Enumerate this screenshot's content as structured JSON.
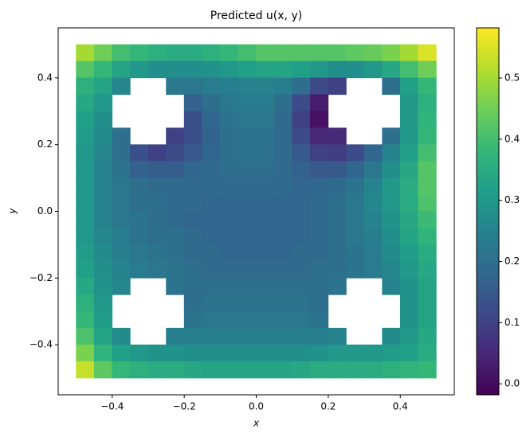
{
  "chart_data": {
    "type": "heatmap",
    "title": "Predicted u(x, y)",
    "xlabel": "x",
    "ylabel": "y",
    "colormap": "viridis",
    "xlim": [
      -0.55,
      0.55
    ],
    "ylim": [
      -0.55,
      0.55
    ],
    "xticks": [
      {
        "value": -0.4,
        "label": "−0.4"
      },
      {
        "value": -0.2,
        "label": "−0.2"
      },
      {
        "value": 0,
        "label": "0.0"
      },
      0.2,
      0.4
    ],
    "yticks": [
      {
        "value": -0.4,
        "label": "−0.4"
      },
      {
        "value": -0.2,
        "label": "−0.2"
      },
      {
        "value": 0,
        "label": "0.0"
      },
      0.2,
      0.4
    ],
    "clim": [
      -0.018,
      0.582
    ],
    "cticks": [
      {
        "value": 0,
        "label": "0.0"
      },
      0.1,
      0.2,
      0.3,
      0.4,
      0.5
    ],
    "x": [
      -0.475,
      -0.425,
      -0.375,
      -0.325,
      -0.275,
      -0.225,
      -0.175,
      -0.125,
      -0.075,
      -0.025,
      0.025,
      0.075,
      0.125,
      0.175,
      0.225,
      0.275,
      0.325,
      0.375,
      0.425,
      0.475
    ],
    "y": [
      0.475,
      0.425,
      0.375,
      0.325,
      0.275,
      0.225,
      0.175,
      0.125,
      0.075,
      0.025,
      -0.025,
      -0.075,
      -0.125,
      -0.175,
      -0.225,
      -0.275,
      -0.325,
      -0.375,
      -0.425,
      -0.475
    ],
    "z": [
      [
        0.5,
        0.45,
        0.4,
        0.38,
        0.36,
        0.35,
        0.35,
        0.36,
        0.38,
        0.4,
        0.42,
        0.42,
        0.42,
        0.42,
        0.42,
        0.43,
        0.44,
        0.46,
        0.5,
        0.55
      ],
      [
        0.42,
        0.38,
        0.33,
        0.3,
        0.28,
        0.28,
        0.28,
        0.29,
        0.3,
        0.32,
        0.33,
        0.33,
        0.32,
        0.3,
        0.28,
        0.28,
        0.3,
        0.34,
        0.4,
        0.45
      ],
      [
        0.36,
        0.33,
        0.26,
        null,
        null,
        0.22,
        0.22,
        0.23,
        0.24,
        0.25,
        0.25,
        0.24,
        0.2,
        0.12,
        0.1,
        null,
        null,
        0.2,
        0.32,
        0.38
      ],
      [
        0.34,
        0.3,
        null,
        null,
        null,
        null,
        0.17,
        0.2,
        0.22,
        0.23,
        0.23,
        0.2,
        0.12,
        0.03,
        null,
        null,
        null,
        null,
        0.3,
        0.36
      ],
      [
        0.32,
        0.28,
        null,
        null,
        null,
        null,
        0.13,
        0.18,
        0.21,
        0.22,
        0.22,
        0.19,
        0.1,
        0.01,
        null,
        null,
        null,
        null,
        0.3,
        0.37
      ],
      [
        0.31,
        0.27,
        0.2,
        null,
        null,
        0.1,
        0.13,
        0.17,
        0.2,
        0.21,
        0.21,
        0.19,
        0.12,
        0.05,
        0.05,
        null,
        null,
        0.2,
        0.3,
        0.38
      ],
      [
        0.3,
        0.26,
        0.2,
        0.13,
        0.1,
        0.12,
        0.15,
        0.18,
        0.2,
        0.21,
        0.21,
        0.19,
        0.15,
        0.1,
        0.09,
        0.12,
        0.18,
        0.25,
        0.32,
        0.4
      ],
      [
        0.3,
        0.25,
        0.21,
        0.17,
        0.16,
        0.16,
        0.18,
        0.19,
        0.2,
        0.2,
        0.2,
        0.19,
        0.17,
        0.15,
        0.15,
        0.18,
        0.22,
        0.28,
        0.34,
        0.42
      ],
      [
        0.3,
        0.25,
        0.22,
        0.2,
        0.19,
        0.19,
        0.19,
        0.19,
        0.19,
        0.19,
        0.19,
        0.19,
        0.18,
        0.18,
        0.19,
        0.21,
        0.25,
        0.3,
        0.35,
        0.42
      ],
      [
        0.3,
        0.25,
        0.22,
        0.2,
        0.2,
        0.19,
        0.19,
        0.18,
        0.18,
        0.18,
        0.18,
        0.18,
        0.18,
        0.19,
        0.2,
        0.22,
        0.26,
        0.3,
        0.35,
        0.41
      ],
      [
        0.3,
        0.25,
        0.22,
        0.21,
        0.2,
        0.19,
        0.18,
        0.18,
        0.18,
        0.18,
        0.18,
        0.18,
        0.18,
        0.19,
        0.2,
        0.22,
        0.25,
        0.29,
        0.34,
        0.39
      ],
      [
        0.3,
        0.26,
        0.23,
        0.21,
        0.2,
        0.2,
        0.19,
        0.18,
        0.18,
        0.18,
        0.18,
        0.18,
        0.18,
        0.19,
        0.2,
        0.22,
        0.24,
        0.28,
        0.33,
        0.37
      ],
      [
        0.31,
        0.27,
        0.24,
        0.22,
        0.21,
        0.2,
        0.19,
        0.19,
        0.18,
        0.18,
        0.18,
        0.18,
        0.19,
        0.19,
        0.2,
        0.21,
        0.23,
        0.27,
        0.31,
        0.35
      ],
      [
        0.32,
        0.28,
        0.25,
        0.23,
        0.22,
        0.21,
        0.2,
        0.19,
        0.19,
        0.19,
        0.19,
        0.19,
        0.19,
        0.2,
        0.2,
        0.21,
        0.23,
        0.26,
        0.3,
        0.34
      ],
      [
        0.34,
        0.29,
        0.26,
        null,
        null,
        0.21,
        0.2,
        0.2,
        0.2,
        0.2,
        0.2,
        0.2,
        0.2,
        0.2,
        0.21,
        null,
        null,
        0.25,
        0.29,
        0.33
      ],
      [
        0.36,
        0.3,
        null,
        null,
        null,
        null,
        0.2,
        0.21,
        0.21,
        0.21,
        0.21,
        0.21,
        0.21,
        0.2,
        null,
        null,
        null,
        null,
        0.29,
        0.33
      ],
      [
        0.38,
        0.31,
        null,
        null,
        null,
        null,
        0.21,
        0.22,
        0.22,
        0.22,
        0.22,
        0.22,
        0.22,
        0.21,
        null,
        null,
        null,
        null,
        0.29,
        0.33
      ],
      [
        0.41,
        0.33,
        0.27,
        null,
        null,
        0.24,
        0.24,
        0.24,
        0.24,
        0.24,
        0.24,
        0.24,
        0.24,
        0.24,
        0.25,
        null,
        null,
        0.27,
        0.3,
        0.34
      ],
      [
        0.46,
        0.37,
        0.32,
        0.3,
        0.29,
        0.29,
        0.28,
        0.28,
        0.28,
        0.28,
        0.28,
        0.28,
        0.28,
        0.29,
        0.3,
        0.3,
        0.3,
        0.31,
        0.32,
        0.35
      ],
      [
        0.53,
        0.43,
        0.38,
        0.36,
        0.35,
        0.35,
        0.34,
        0.33,
        0.33,
        0.33,
        0.33,
        0.33,
        0.34,
        0.35,
        0.35,
        0.35,
        0.35,
        0.36,
        0.37,
        0.38
      ]
    ]
  }
}
